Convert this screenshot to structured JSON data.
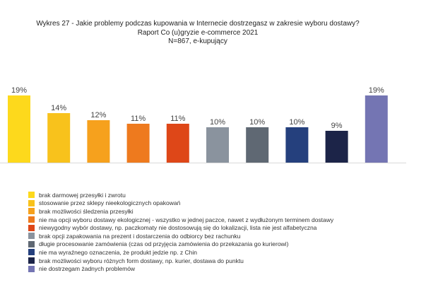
{
  "header": {
    "title": "Wykres 27  - Jakie problemy podczas kupowania w Internecie dostrzegasz w zakresie wyboru dostawy?",
    "subtitle": "Raport Co (u)gryzie e-commerce 2021",
    "sample": "N=867, e-kupujący"
  },
  "chart_data": {
    "type": "bar",
    "title": "Wykres 27  - Jakie problemy podczas kupowania w Internecie dostrzegasz w zakresie wyboru dostawy?",
    "subtitle": "Raport Co (u)gryzie e-commerce 2021",
    "note": "N=867, e-kupujący",
    "xlabel": "",
    "ylabel": "",
    "ylim": [
      0,
      20
    ],
    "grid": false,
    "legend_position": "bottom-left",
    "categories": [
      "brak darmowej przesyłki i zwrotu",
      "stosowanie przez sklepy nieekologicznych opakowań",
      "brak możliwości śledzenia przesyłki",
      "nie ma opcji wyboru dostawy ekologicznej - wszystko w jednej paczce, nawet z wydłużonym terminem dostawy",
      "niewygodny wybór dostawy, np. paczkomaty nie dostosowują się do lokalizacji, lista nie jest alfabetyczna",
      "brak opcji zapakowania na prezent i dostarczenia do odbiorcy bez rachunku",
      "długie procesowanie zamówienia (czas od przyjęcia zamówienia do przekazania go kurierowi)",
      "nie ma wyraźnego oznaczenia, że produkt jedzie np. z Chin",
      "brak możliwości wyboru różnych form dostawy, np. kurier, dostawa do punktu",
      "nie dostrzegam żadnych problemów"
    ],
    "values": [
      19,
      14,
      12,
      11,
      11,
      10,
      10,
      10,
      9,
      19
    ],
    "value_labels": [
      "19%",
      "14%",
      "12%",
      "11%",
      "11%",
      "10%",
      "10%",
      "10%",
      "9%",
      "19%"
    ],
    "colors": [
      "#FDD91C",
      "#F8C21C",
      "#F6A11D",
      "#EE7A1E",
      "#DE4718",
      "#8A939E",
      "#5F6873",
      "#25407D",
      "#1C2448",
      "#7475B3"
    ]
  }
}
